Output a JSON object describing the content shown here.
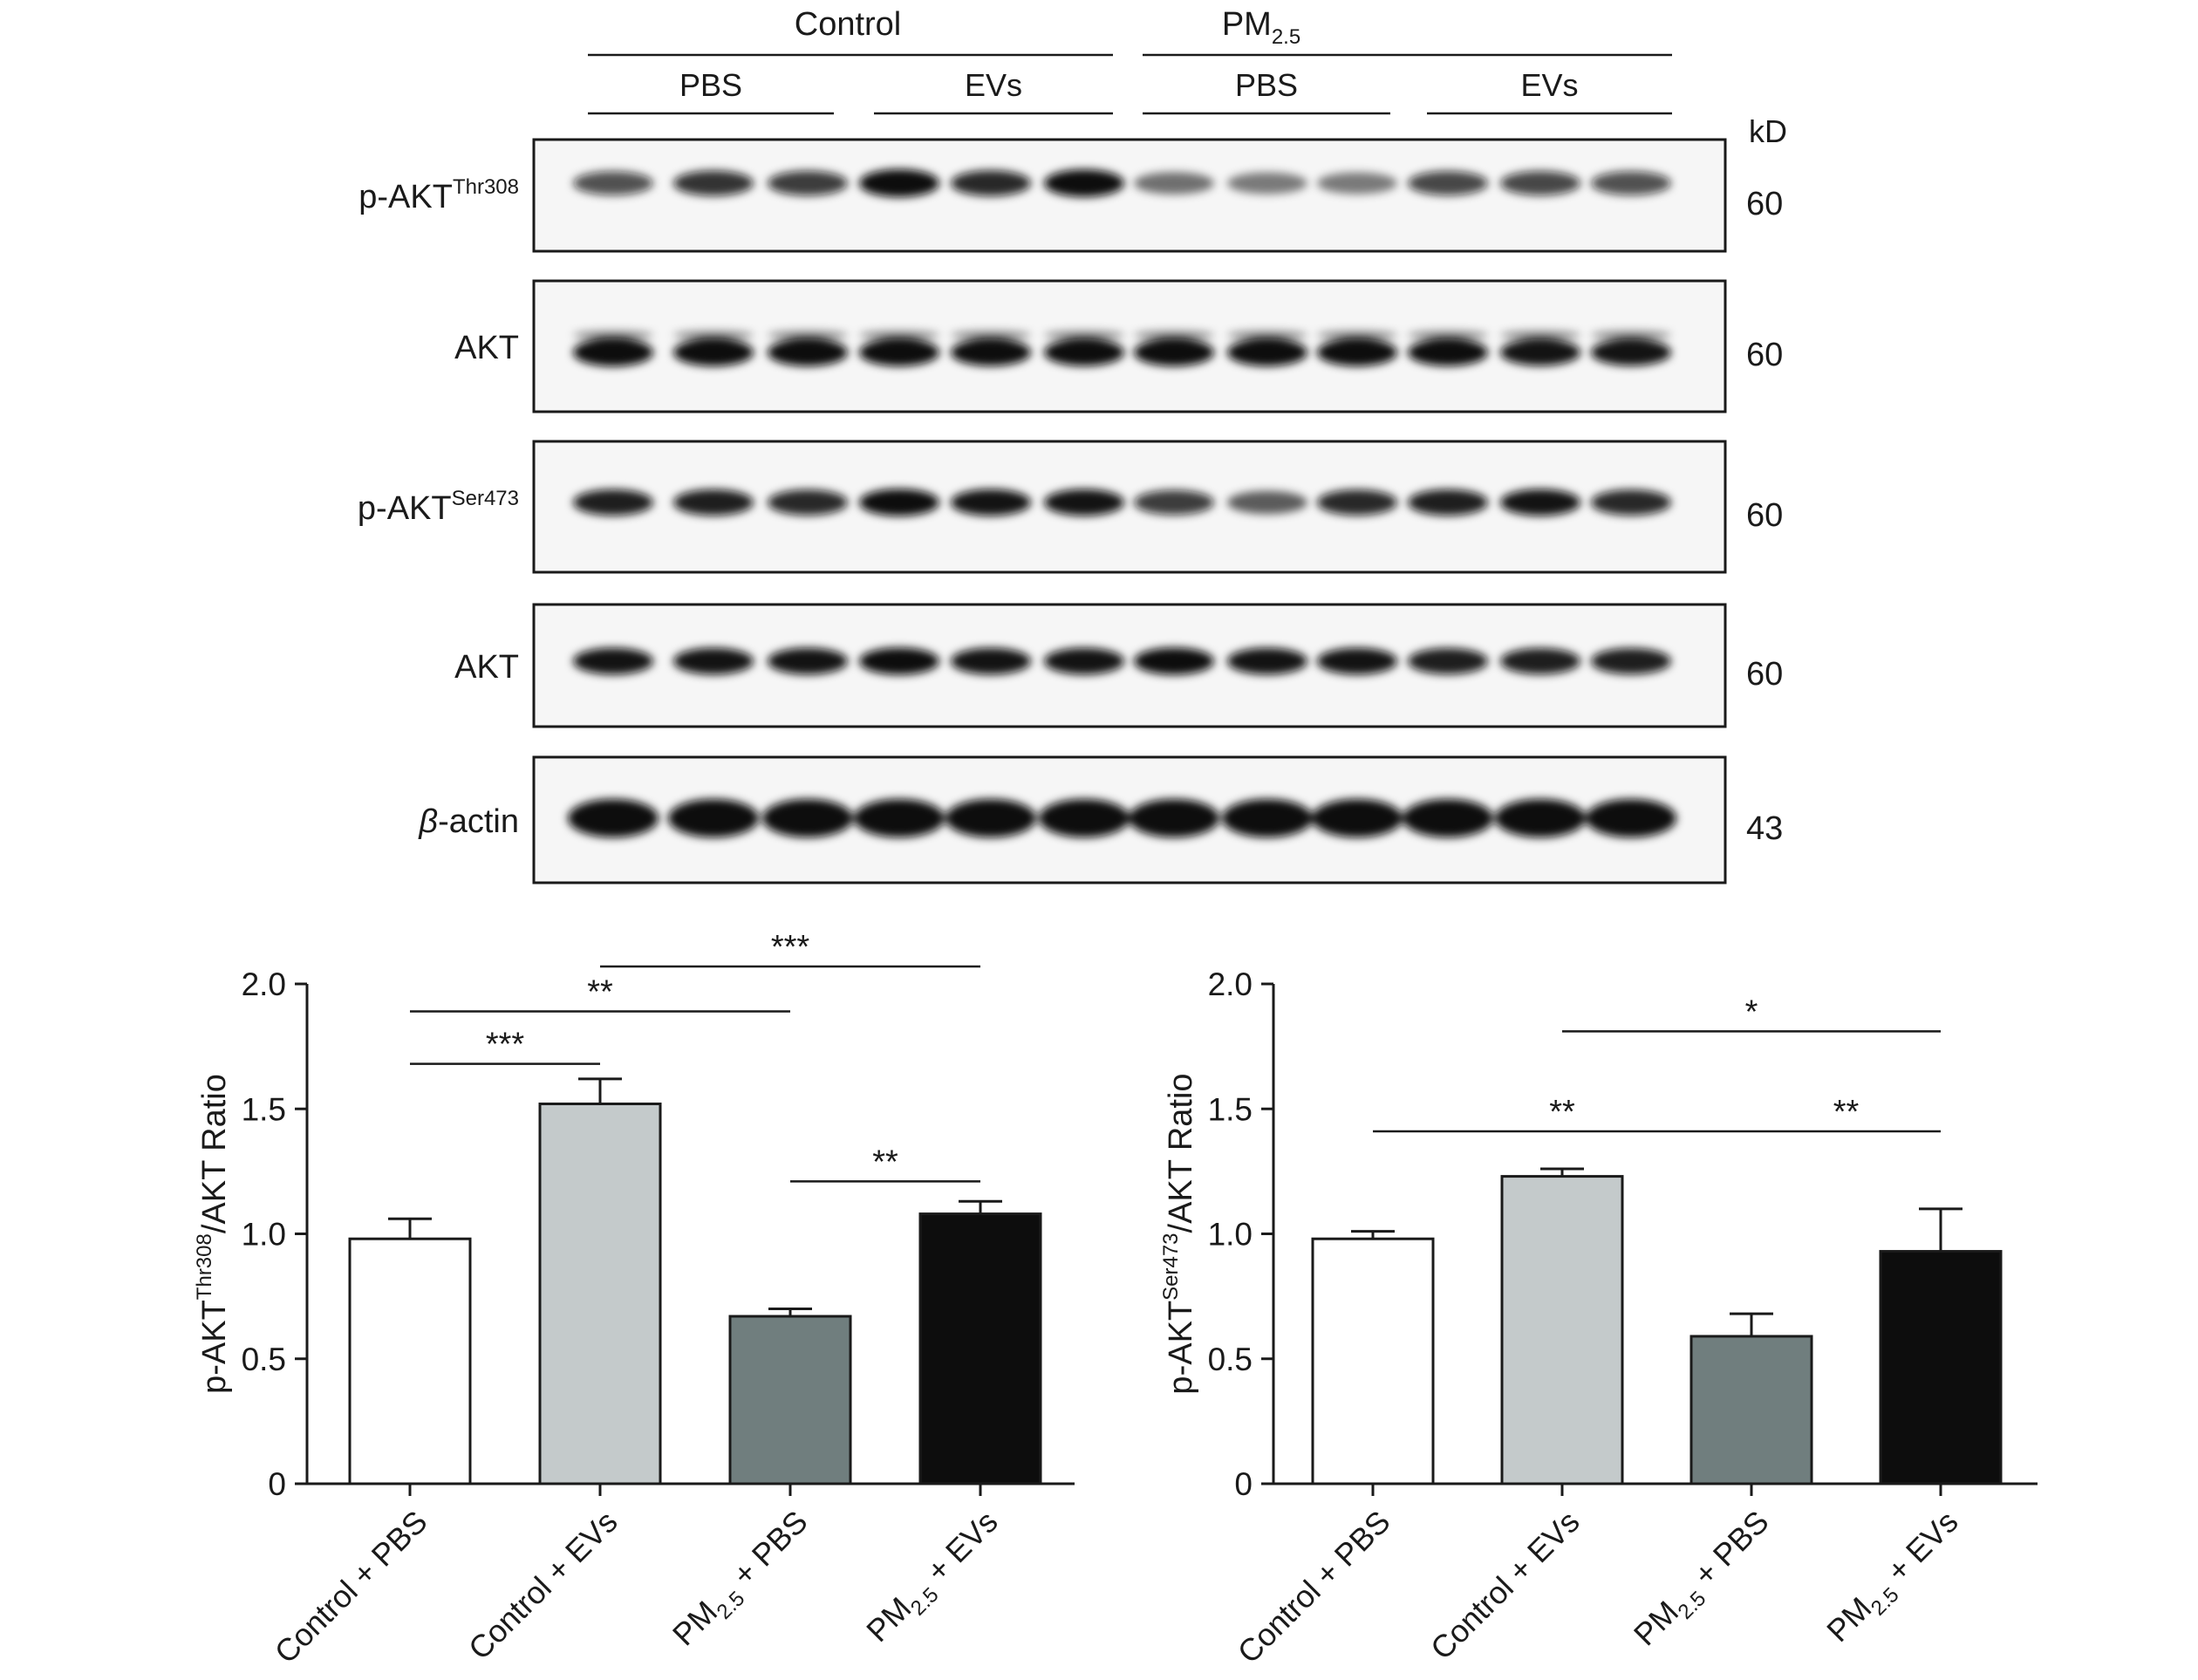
{
  "blot": {
    "groups": [
      {
        "label": "Control",
        "sub": ""
      },
      {
        "label": "PM",
        "sub": "2.5"
      }
    ],
    "treatments": [
      "PBS",
      "EVs",
      "PBS",
      "EVs"
    ],
    "kd_label": "kD",
    "rows": [
      {
        "name": "p-AKT",
        "sup": "Thr308",
        "italic": false,
        "kd": "60",
        "lanes": [
          0.55,
          0.7,
          0.65,
          1.0,
          0.75,
          0.95,
          0.35,
          0.3,
          0.3,
          0.6,
          0.6,
          0.55
        ]
      },
      {
        "name": "AKT",
        "sup": "",
        "italic": false,
        "kd": "60",
        "lanes": [
          1.0,
          0.95,
          0.95,
          0.95,
          0.9,
          0.9,
          0.95,
          0.95,
          0.95,
          0.9,
          0.85,
          0.85
        ]
      },
      {
        "name": "p-AKT",
        "sup": "Ser473",
        "italic": false,
        "kd": "60",
        "lanes": [
          0.8,
          0.8,
          0.75,
          0.9,
          0.85,
          0.85,
          0.65,
          0.45,
          0.75,
          0.8,
          0.85,
          0.75
        ]
      },
      {
        "name": "AKT",
        "sup": "",
        "italic": false,
        "kd": "60",
        "lanes": [
          0.85,
          0.85,
          0.85,
          0.9,
          0.85,
          0.85,
          0.9,
          0.85,
          0.85,
          0.8,
          0.8,
          0.8
        ]
      },
      {
        "name": "-actin",
        "sup": "",
        "italic": true,
        "prefix": "β",
        "kd": "43",
        "lanes": [
          1.0,
          1.0,
          1.0,
          1.0,
          1.0,
          1.0,
          0.95,
          0.95,
          0.95,
          0.95,
          1.0,
          1.0
        ]
      }
    ]
  },
  "chart_data": [
    {
      "type": "bar",
      "categories": [
        {
          "main": "Control + PBS",
          "sub": ""
        },
        {
          "main": "Control + EVs",
          "sub": ""
        },
        {
          "pre": "PM",
          "sub": "2.5",
          "post": " + PBS"
        },
        {
          "pre": "PM",
          "sub": "2.5",
          "post": " + EVs"
        }
      ],
      "values": [
        0.98,
        1.52,
        0.67,
        1.08
      ],
      "errors": [
        0.08,
        0.1,
        0.03,
        0.05
      ],
      "colors": [
        "#ffffff",
        "#c4cacb",
        "#707e7e",
        "#0d0d0d"
      ],
      "ylabel": {
        "pre": "p-AKT",
        "sup": "Thr308",
        "post": "/AKT Ratio"
      },
      "ylim": [
        0,
        2.0
      ],
      "yticks": [
        "0",
        "0.5",
        "1.0",
        "1.5",
        "2.0"
      ],
      "significance": [
        {
          "from": 0,
          "to": 1,
          "level": 1.68,
          "label": "***"
        },
        {
          "from": 0,
          "to": 2,
          "level": 1.89,
          "label": "**"
        },
        {
          "from": 1,
          "to": 3,
          "level": 2.07,
          "label": "***"
        },
        {
          "from": 2,
          "to": 3,
          "level": 1.21,
          "label": "**"
        }
      ]
    },
    {
      "type": "bar",
      "categories": [
        {
          "main": "Control + PBS",
          "sub": ""
        },
        {
          "main": "Control + EVs",
          "sub": ""
        },
        {
          "pre": "PM",
          "sub": "2.5",
          "post": " + PBS"
        },
        {
          "pre": "PM",
          "sub": "2.5",
          "post": " + EVs"
        }
      ],
      "values": [
        0.98,
        1.23,
        0.59,
        0.93
      ],
      "errors": [
        0.03,
        0.03,
        0.09,
        0.17
      ],
      "colors": [
        "#ffffff",
        "#c4cacb",
        "#707e7e",
        "#0d0d0d"
      ],
      "ylabel": {
        "pre": "p-AKT",
        "sup": "Ser473",
        "post": "/AKT Ratio"
      },
      "ylim": [
        0,
        2.0
      ],
      "yticks": [
        "0",
        "0.5",
        "1.0",
        "1.5",
        "2.0"
      ],
      "significance": [
        {
          "from": 1,
          "to": 3,
          "level": 1.81,
          "label": "*"
        },
        {
          "from": 0,
          "to": 2,
          "level": 1.41,
          "label": "**"
        },
        {
          "from": 2,
          "to": 3,
          "level": 1.41,
          "label": "**"
        }
      ]
    }
  ]
}
